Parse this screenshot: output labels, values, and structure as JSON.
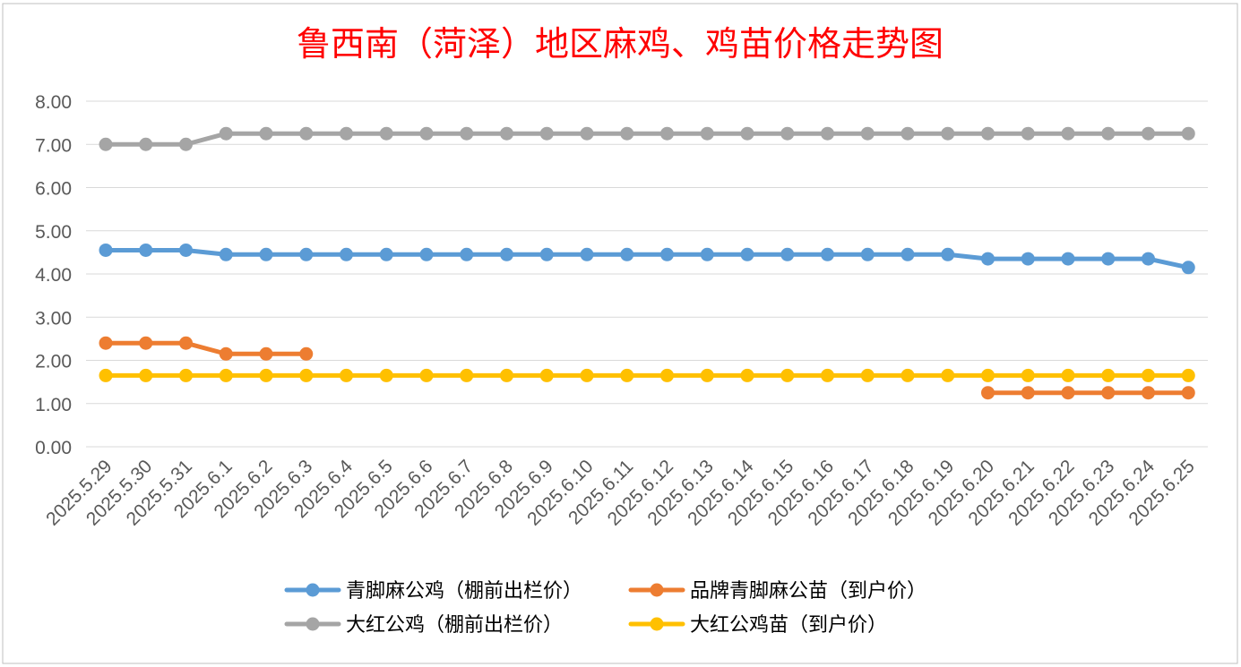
{
  "colors": {
    "title": "#ff0000",
    "grid": "#d9d9d9",
    "axis_text": "#595959",
    "legend_text": "#000000",
    "border": "#bfbfbf"
  },
  "chart_data": {
    "type": "line",
    "title": "鲁西南（菏泽）地区麻鸡、鸡苗价格走势图",
    "xlabel": "",
    "ylabel": "",
    "ylim": [
      0,
      8
    ],
    "y_ticks": [
      "0.00",
      "1.00",
      "2.00",
      "3.00",
      "4.00",
      "5.00",
      "6.00",
      "7.00",
      "8.00"
    ],
    "grid": true,
    "legend_position": "bottom",
    "categories": [
      "2025.5.29",
      "2025.5.30",
      "2025.5.31",
      "2025.6.1",
      "2025.6.2",
      "2025.6.3",
      "2025.6.4",
      "2025.6.5",
      "2025.6.6",
      "2025.6.7",
      "2025.6.8",
      "2025.6.9",
      "2025.6.10",
      "2025.6.11",
      "2025.6.12",
      "2025.6.13",
      "2025.6.14",
      "2025.6.15",
      "2025.6.16",
      "2025.6.17",
      "2025.6.18",
      "2025.6.19",
      "2025.6.20",
      "2025.6.21",
      "2025.6.22",
      "2025.6.23",
      "2025.6.24",
      "2025.6.25"
    ],
    "series": [
      {
        "name": "青脚麻公鸡（棚前出栏价）",
        "color": "#5b9bd5",
        "values": [
          4.55,
          4.55,
          4.55,
          4.45,
          4.45,
          4.45,
          4.45,
          4.45,
          4.45,
          4.45,
          4.45,
          4.45,
          4.45,
          4.45,
          4.45,
          4.45,
          4.45,
          4.45,
          4.45,
          4.45,
          4.45,
          4.45,
          4.35,
          4.35,
          4.35,
          4.35,
          4.35,
          4.15
        ]
      },
      {
        "name": "品牌青脚麻公苗（到户价）",
        "color": "#ed7d31",
        "values": [
          2.4,
          2.4,
          2.4,
          2.15,
          2.15,
          2.15,
          null,
          null,
          null,
          null,
          null,
          null,
          null,
          null,
          null,
          null,
          null,
          null,
          null,
          null,
          null,
          null,
          1.25,
          1.25,
          1.25,
          1.25,
          1.25,
          1.25
        ]
      },
      {
        "name": "大红公鸡（棚前出栏价）",
        "color": "#a5a5a5",
        "values": [
          7.0,
          7.0,
          7.0,
          7.25,
          7.25,
          7.25,
          7.25,
          7.25,
          7.25,
          7.25,
          7.25,
          7.25,
          7.25,
          7.25,
          7.25,
          7.25,
          7.25,
          7.25,
          7.25,
          7.25,
          7.25,
          7.25,
          7.25,
          7.25,
          7.25,
          7.25,
          7.25,
          7.25
        ]
      },
      {
        "name": "大红公鸡苗（到户价）",
        "color": "#ffc000",
        "values": [
          1.65,
          1.65,
          1.65,
          1.65,
          1.65,
          1.65,
          1.65,
          1.65,
          1.65,
          1.65,
          1.65,
          1.65,
          1.65,
          1.65,
          1.65,
          1.65,
          1.65,
          1.65,
          1.65,
          1.65,
          1.65,
          1.65,
          1.65,
          1.65,
          1.65,
          1.65,
          1.65,
          1.65
        ]
      }
    ]
  }
}
